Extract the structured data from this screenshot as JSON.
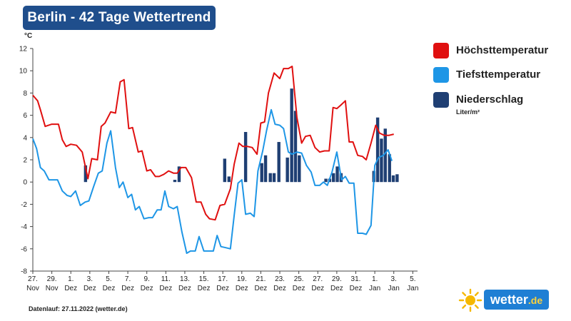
{
  "header": {
    "title": "Berlin - 42 Tage Wettertrend",
    "unit_label": "°C"
  },
  "legend": {
    "items": [
      {
        "label": "Höchsttemperatur",
        "color": "#e01010"
      },
      {
        "label": "Tiefsttemperatur",
        "color": "#1e96e6"
      },
      {
        "label": "Niederschlag",
        "color": "#1f3f73"
      }
    ],
    "precip_unit": "Liter/m²"
  },
  "footer": {
    "note": "Datenlauf: 27.11.2022 (wetter.de)"
  },
  "logo": {
    "text": "wetter",
    "tld": ".de",
    "icon": "sun-icon"
  },
  "chart_data": {
    "type": "line",
    "ylabel": "°C",
    "ylim": [
      -8,
      12
    ],
    "yticks": [
      -8,
      -6,
      -4,
      -2,
      0,
      2,
      4,
      6,
      8,
      10,
      12
    ],
    "xlim": [
      0,
      40.5
    ],
    "grid": false,
    "legend_position": "right",
    "xticks": [
      {
        "x": 0,
        "day": "27.",
        "month": "Nov"
      },
      {
        "x": 2,
        "day": "29.",
        "month": "Nov"
      },
      {
        "x": 4,
        "day": "1.",
        "month": "Dez"
      },
      {
        "x": 6,
        "day": "3.",
        "month": "Dez"
      },
      {
        "x": 8,
        "day": "5.",
        "month": "Dez"
      },
      {
        "x": 10,
        "day": "7.",
        "month": "Dez"
      },
      {
        "x": 12,
        "day": "9.",
        "month": "Dez"
      },
      {
        "x": 14,
        "day": "11.",
        "month": "Dez"
      },
      {
        "x": 16,
        "day": "13.",
        "month": "Dez"
      },
      {
        "x": 18,
        "day": "15.",
        "month": "Dez"
      },
      {
        "x": 20,
        "day": "17.",
        "month": "Dez"
      },
      {
        "x": 22,
        "day": "19.",
        "month": "Dez"
      },
      {
        "x": 24,
        "day": "21.",
        "month": "Dez"
      },
      {
        "x": 26,
        "day": "23.",
        "month": "Dez"
      },
      {
        "x": 28,
        "day": "25.",
        "month": "Dez"
      },
      {
        "x": 30,
        "day": "27.",
        "month": "Dez"
      },
      {
        "x": 32,
        "day": "29.",
        "month": "Dez"
      },
      {
        "x": 34,
        "day": "31.",
        "month": "Dez"
      },
      {
        "x": 36,
        "day": "1.",
        "month": "Jan"
      },
      {
        "x": 38,
        "day": "3.",
        "month": "Jan"
      },
      {
        "x": 40,
        "day": "5.",
        "month": "Jan"
      }
    ],
    "series": [
      {
        "name": "Höchsttemperatur",
        "color": "#e01010",
        "points": [
          [
            0,
            7.8
          ],
          [
            0.5,
            7.3
          ],
          [
            0.8,
            6.5
          ],
          [
            1.3,
            5.0
          ],
          [
            2,
            5.2
          ],
          [
            2.7,
            5.2
          ],
          [
            3.1,
            3.8
          ],
          [
            3.5,
            3.2
          ],
          [
            4,
            3.4
          ],
          [
            4.6,
            3.3
          ],
          [
            5.2,
            2.7
          ],
          [
            5.8,
            0.3
          ],
          [
            6.2,
            2.1
          ],
          [
            6.8,
            2.0
          ],
          [
            7.2,
            5.0
          ],
          [
            7.6,
            5.3
          ],
          [
            8.2,
            6.3
          ],
          [
            8.7,
            6.2
          ],
          [
            9.2,
            9.0
          ],
          [
            9.6,
            9.2
          ],
          [
            10.1,
            4.8
          ],
          [
            10.5,
            4.9
          ],
          [
            11.1,
            2.7
          ],
          [
            11.5,
            2.8
          ],
          [
            12,
            1.0
          ],
          [
            12.4,
            1.1
          ],
          [
            12.9,
            0.5
          ],
          [
            13.3,
            0.5
          ],
          [
            13.8,
            0.7
          ],
          [
            14.3,
            1.0
          ],
          [
            14.8,
            0.8
          ],
          [
            15.2,
            0.8
          ],
          [
            15.6,
            1.3
          ],
          [
            16.1,
            1.3
          ],
          [
            16.7,
            0.4
          ],
          [
            17.2,
            -1.8
          ],
          [
            17.7,
            -1.8
          ],
          [
            18.2,
            -2.9
          ],
          [
            18.6,
            -3.3
          ],
          [
            19.2,
            -3.4
          ],
          [
            19.7,
            -2.1
          ],
          [
            20.2,
            -2.0
          ],
          [
            20.8,
            -0.6
          ],
          [
            21.2,
            1.6
          ],
          [
            21.7,
            3.5
          ],
          [
            22.1,
            3.2
          ],
          [
            22.6,
            3.2
          ],
          [
            23.1,
            3.1
          ],
          [
            23.6,
            2.5
          ],
          [
            24,
            5.3
          ],
          [
            24.4,
            5.4
          ],
          [
            24.8,
            8.0
          ],
          [
            25.4,
            9.8
          ],
          [
            26,
            9.3
          ],
          [
            26.4,
            10.2
          ],
          [
            26.9,
            10.2
          ],
          [
            27.3,
            10.4
          ],
          [
            27.8,
            5.8
          ],
          [
            28.3,
            3.5
          ],
          [
            28.7,
            4.1
          ],
          [
            29.2,
            4.2
          ],
          [
            29.7,
            3.1
          ],
          [
            30.2,
            2.7
          ],
          [
            30.7,
            2.8
          ],
          [
            31.2,
            2.8
          ],
          [
            31.6,
            6.7
          ],
          [
            32,
            6.6
          ],
          [
            32.4,
            6.9
          ],
          [
            32.9,
            7.3
          ],
          [
            33.3,
            3.6
          ],
          [
            33.7,
            3.6
          ],
          [
            34.2,
            2.4
          ],
          [
            34.7,
            2.3
          ],
          [
            35.1,
            2.0
          ],
          [
            35.6,
            3.5
          ],
          [
            36.1,
            5.1
          ],
          [
            36.5,
            4.4
          ],
          [
            37,
            4.2
          ],
          [
            37.5,
            4.2
          ],
          [
            38,
            4.3
          ]
        ]
      },
      {
        "name": "Tiefsttemperatur",
        "color": "#1e96e6",
        "points": [
          [
            0,
            3.9
          ],
          [
            0.4,
            3.0
          ],
          [
            0.8,
            1.3
          ],
          [
            1.2,
            1.0
          ],
          [
            1.7,
            0.2
          ],
          [
            2.2,
            0.2
          ],
          [
            2.6,
            0.2
          ],
          [
            3.1,
            -0.8
          ],
          [
            3.6,
            -1.2
          ],
          [
            4,
            -1.3
          ],
          [
            4.5,
            -0.8
          ],
          [
            5,
            -2.1
          ],
          [
            5.5,
            -1.8
          ],
          [
            5.9,
            -1.7
          ],
          [
            6.4,
            -0.4
          ],
          [
            6.9,
            0.8
          ],
          [
            7.3,
            1.0
          ],
          [
            7.8,
            3.5
          ],
          [
            8.2,
            4.6
          ],
          [
            8.7,
            1.3
          ],
          [
            9.1,
            -0.5
          ],
          [
            9.5,
            0.0
          ],
          [
            10,
            -1.4
          ],
          [
            10.4,
            -1.1
          ],
          [
            10.8,
            -2.5
          ],
          [
            11.2,
            -2.2
          ],
          [
            11.7,
            -3.3
          ],
          [
            12.2,
            -3.2
          ],
          [
            12.6,
            -3.2
          ],
          [
            13.1,
            -2.5
          ],
          [
            13.5,
            -2.5
          ],
          [
            13.9,
            -0.8
          ],
          [
            14.3,
            -2.2
          ],
          [
            14.8,
            -2.4
          ],
          [
            15.2,
            -2.2
          ],
          [
            15.7,
            -4.5
          ],
          [
            16.2,
            -6.4
          ],
          [
            16.6,
            -6.2
          ],
          [
            17.1,
            -6.2
          ],
          [
            17.5,
            -4.9
          ],
          [
            18,
            -6.2
          ],
          [
            18.5,
            -6.2
          ],
          [
            19,
            -6.2
          ],
          [
            19.4,
            -4.8
          ],
          [
            19.8,
            -5.8
          ],
          [
            20.3,
            -5.9
          ],
          [
            20.8,
            -6.0
          ],
          [
            21.2,
            -3.0
          ],
          [
            21.6,
            -0.1
          ],
          [
            22,
            0.2
          ],
          [
            22.4,
            -2.9
          ],
          [
            22.9,
            -2.8
          ],
          [
            23.3,
            -3.1
          ],
          [
            23.7,
            1.0
          ],
          [
            24.2,
            2.8
          ],
          [
            24.6,
            4.6
          ],
          [
            25.1,
            6.5
          ],
          [
            25.5,
            5.2
          ],
          [
            26,
            5.1
          ],
          [
            26.4,
            4.8
          ],
          [
            26.9,
            2.7
          ],
          [
            27.3,
            2.5
          ],
          [
            27.8,
            2.7
          ],
          [
            28.3,
            2.6
          ],
          [
            28.8,
            1.5
          ],
          [
            29.3,
            0.9
          ],
          [
            29.7,
            -0.3
          ],
          [
            30.2,
            -0.3
          ],
          [
            30.6,
            0.0
          ],
          [
            31,
            -0.3
          ],
          [
            31.5,
            0.9
          ],
          [
            32,
            2.7
          ],
          [
            32.5,
            0.2
          ],
          [
            32.9,
            0.5
          ],
          [
            33.3,
            -0.1
          ],
          [
            33.8,
            -0.1
          ],
          [
            34.2,
            -4.6
          ],
          [
            34.7,
            -4.6
          ],
          [
            35.1,
            -4.7
          ],
          [
            35.6,
            -3.9
          ],
          [
            36,
            1.5
          ],
          [
            36.4,
            2.2
          ],
          [
            36.9,
            2.4
          ],
          [
            37.4,
            2.9
          ],
          [
            37.8,
            1.9
          ]
        ]
      }
    ],
    "precipitation": {
      "name": "Niederschlag",
      "color": "#1f3f73",
      "unit": "Liter/m²",
      "bars": [
        [
          5.55,
          1.5
        ],
        [
          14.95,
          0.2
        ],
        [
          15.4,
          1.4
        ],
        [
          20.2,
          2.1
        ],
        [
          20.65,
          0.5
        ],
        [
          22.4,
          4.5
        ],
        [
          24.1,
          1.7
        ],
        [
          24.5,
          2.4
        ],
        [
          25.0,
          0.8
        ],
        [
          25.4,
          0.8
        ],
        [
          25.9,
          3.6
        ],
        [
          26.8,
          2.2
        ],
        [
          27.25,
          8.4
        ],
        [
          27.65,
          6.4
        ],
        [
          28.05,
          2.4
        ],
        [
          30.85,
          0.3
        ],
        [
          31.25,
          0.3
        ],
        [
          31.65,
          0.8
        ],
        [
          32.05,
          1.4
        ],
        [
          32.45,
          0.8
        ],
        [
          35.9,
          1.0
        ],
        [
          36.3,
          5.8
        ],
        [
          36.7,
          3.9
        ],
        [
          37.1,
          4.8
        ],
        [
          37.55,
          2.5
        ],
        [
          37.95,
          0.6
        ],
        [
          38.35,
          0.7
        ]
      ]
    }
  }
}
